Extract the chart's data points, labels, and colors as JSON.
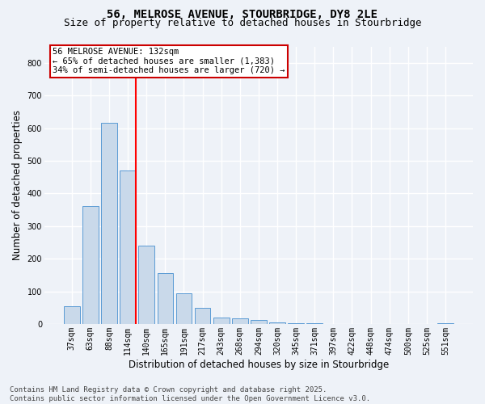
{
  "title_line1": "56, MELROSE AVENUE, STOURBRIDGE, DY8 2LE",
  "title_line2": "Size of property relative to detached houses in Stourbridge",
  "xlabel": "Distribution of detached houses by size in Stourbridge",
  "ylabel": "Number of detached properties",
  "bin_labels": [
    "37sqm",
    "63sqm",
    "88sqm",
    "114sqm",
    "140sqm",
    "165sqm",
    "191sqm",
    "217sqm",
    "243sqm",
    "268sqm",
    "294sqm",
    "320sqm",
    "345sqm",
    "371sqm",
    "397sqm",
    "422sqm",
    "448sqm",
    "474sqm",
    "500sqm",
    "525sqm",
    "551sqm"
  ],
  "bar_heights": [
    55,
    360,
    615,
    470,
    240,
    155,
    95,
    50,
    20,
    18,
    12,
    5,
    3,
    2,
    1,
    1,
    0,
    0,
    0,
    0,
    3
  ],
  "bar_color": "#c9d9ea",
  "bar_edge_color": "#5b9bd5",
  "annotation_text": "56 MELROSE AVENUE: 132sqm\n← 65% of detached houses are smaller (1,383)\n34% of semi-detached houses are larger (720) →",
  "annotation_box_color": "#ffffff",
  "annotation_box_edge_color": "#cc0000",
  "ylim": [
    0,
    850
  ],
  "yticks": [
    0,
    100,
    200,
    300,
    400,
    500,
    600,
    700,
    800
  ],
  "footer_text": "Contains HM Land Registry data © Crown copyright and database right 2025.\nContains public sector information licensed under the Open Government Licence v3.0.",
  "bg_color": "#eef2f8",
  "plot_bg_color": "#eef2f8",
  "grid_color": "#ffffff",
  "title_fontsize": 10,
  "subtitle_fontsize": 9,
  "axis_label_fontsize": 8.5,
  "tick_fontsize": 7,
  "footer_fontsize": 6.5,
  "red_line_bin_index": 3,
  "bar_width": 0.85
}
